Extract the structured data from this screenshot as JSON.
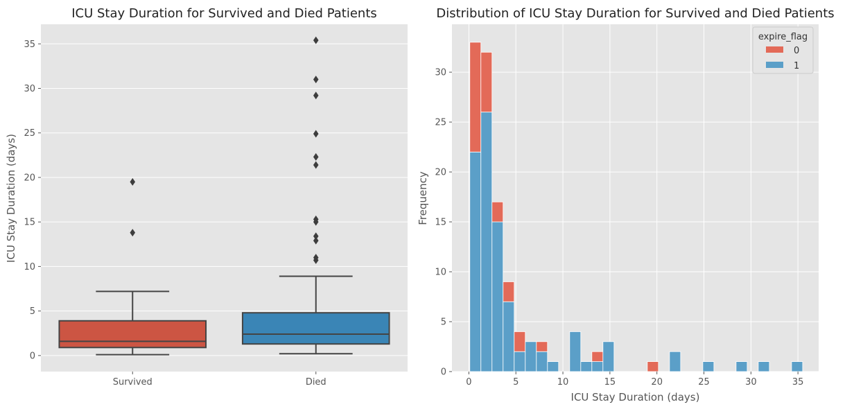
{
  "chart_data": [
    {
      "type": "box",
      "title": "ICU Stay Duration for Survived and Died Patients",
      "xlabel": "",
      "ylabel": "ICU Stay Duration (days)",
      "ylim": [
        -1.8,
        37.2
      ],
      "yticks": [
        0,
        5,
        10,
        15,
        20,
        25,
        30,
        35
      ],
      "grid": true,
      "colors": {
        "background": "#e5e5e5",
        "grid": "#ffffff",
        "line": "#444444"
      },
      "groups": [
        {
          "label": "Survived",
          "color": "#cc5543",
          "whisker_low": 0.1,
          "q1": 0.9,
          "median": 1.6,
          "q3": 3.9,
          "whisker_high": 7.2,
          "outliers": [
            13.8,
            19.5
          ]
        },
        {
          "label": "Died",
          "color": "#3a85b6",
          "whisker_low": 0.2,
          "q1": 1.3,
          "median": 2.4,
          "q3": 4.8,
          "whisker_high": 8.9,
          "outliers": [
            10.7,
            11.0,
            12.9,
            13.4,
            15.0,
            15.3,
            21.4,
            22.3,
            24.9,
            29.2,
            31.0,
            35.4
          ]
        }
      ]
    },
    {
      "type": "bar",
      "stacked": true,
      "title": "Distribution of ICU Stay Duration for Survived and Died Patients",
      "xlabel": "ICU Stay Duration (days)",
      "ylabel": "Frequency",
      "xlim": [
        -1.8,
        37.2
      ],
      "ylim": [
        0,
        34.8
      ],
      "xticks": [
        0,
        5,
        10,
        15,
        20,
        25,
        30,
        35
      ],
      "yticks": [
        0,
        5,
        10,
        15,
        20,
        25,
        30
      ],
      "grid": true,
      "legend": {
        "title": "expire_flag",
        "position": "top-right"
      },
      "bin_start": 0.1,
      "bin_width": 1.18,
      "series": [
        {
          "name": "1",
          "color": "#5b9fc8",
          "values": [
            22,
            26,
            15,
            7,
            2,
            3,
            2,
            1,
            0,
            4,
            1,
            1,
            3,
            0,
            0,
            0,
            0,
            0,
            2,
            0,
            0,
            1,
            0,
            0,
            1,
            0,
            1,
            0,
            0,
            1
          ]
        },
        {
          "name": "0",
          "color": "#e36a58",
          "values": [
            11,
            6,
            2,
            2,
            2,
            0,
            1,
            0,
            0,
            0,
            0,
            1,
            0,
            0,
            0,
            0,
            1,
            0,
            0,
            0,
            0,
            0,
            0,
            0,
            0,
            0,
            0,
            0,
            0,
            0
          ]
        }
      ]
    }
  ]
}
